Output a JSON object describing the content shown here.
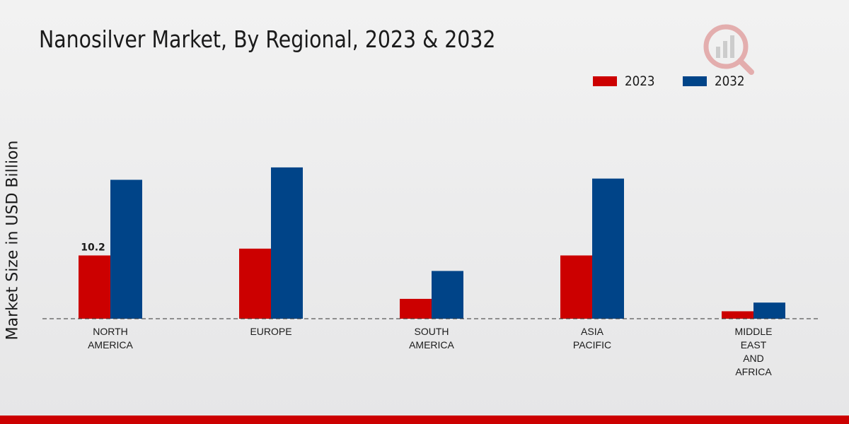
{
  "chart_data": {
    "type": "bar",
    "title": "Nanosilver Market, By Regional, 2023 & 2032",
    "ylabel": "Market Size in USD Billion",
    "xlabel": "",
    "categories": [
      [
        "NORTH",
        "AMERICA"
      ],
      [
        "EUROPE"
      ],
      [
        "SOUTH",
        "AMERICA"
      ],
      [
        "ASIA",
        "PACIFIC"
      ],
      [
        "MIDDLE",
        "EAST",
        "AND",
        "AFRICA"
      ]
    ],
    "series": [
      {
        "name": "2023",
        "color": "#cc0000",
        "values": [
          10.2,
          11.3,
          3.2,
          10.2,
          1.2
        ]
      },
      {
        "name": "2032",
        "color": "#004488",
        "values": [
          22.4,
          24.4,
          7.7,
          22.6,
          2.6
        ]
      }
    ],
    "data_labels": [
      {
        "series": 0,
        "index": 0,
        "text": "10.2"
      }
    ],
    "ylim": [
      0,
      40
    ],
    "grid": false,
    "legend": "top-right"
  },
  "colors": {
    "accent": "#cc0000",
    "secondary": "#004488"
  }
}
